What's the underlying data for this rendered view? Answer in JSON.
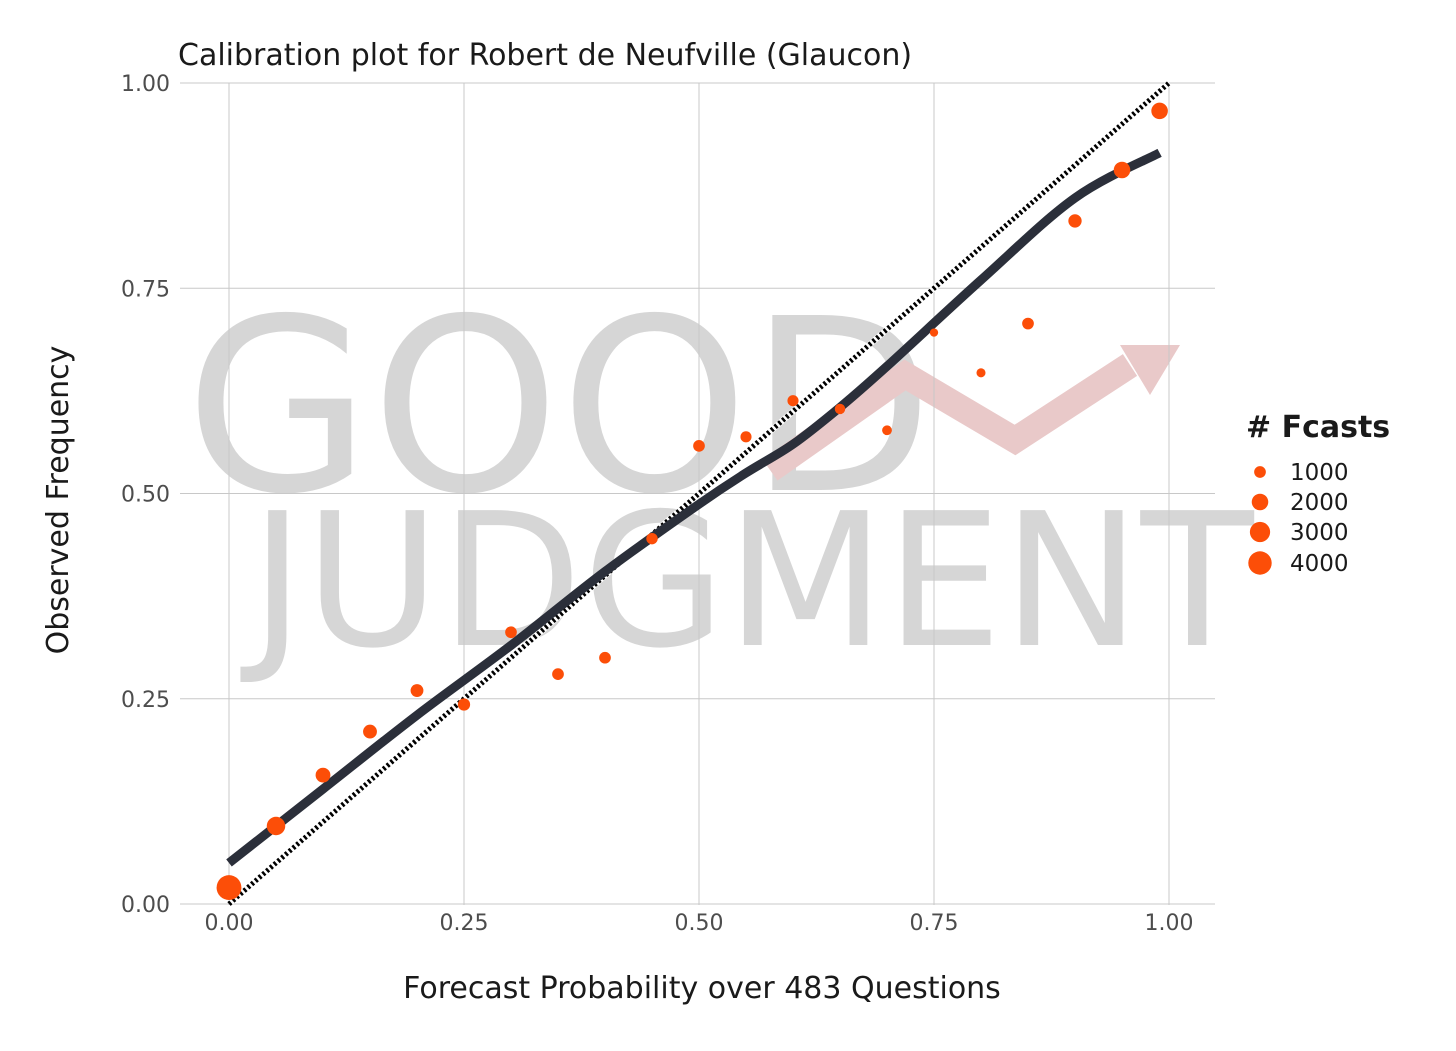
{
  "chart_data": {
    "type": "scatter",
    "title": "Calibration plot for Robert de Neufville (Glaucon)",
    "xlabel": "Forecast Probability over 483 Questions",
    "ylabel": "Observed Frequency",
    "xlim": [
      0,
      1
    ],
    "ylim": [
      0,
      1
    ],
    "x_ticks": [
      "0.00",
      "0.25",
      "0.50",
      "0.75",
      "1.00"
    ],
    "y_ticks": [
      "0.00",
      "0.25",
      "0.50",
      "0.75",
      "1.00"
    ],
    "grid": true,
    "colors": {
      "points": "#fc4e08",
      "fit_line": "#2b2f3a",
      "reference_line": "#000000",
      "grid": "#c8c8c8",
      "watermark_arrow": "#e9c9c9"
    },
    "points": [
      {
        "x": 0.0,
        "y": 0.02,
        "n": 4500
      },
      {
        "x": 0.05,
        "y": 0.095,
        "n": 2500
      },
      {
        "x": 0.1,
        "y": 0.157,
        "n": 1600
      },
      {
        "x": 0.15,
        "y": 0.21,
        "n": 1400
      },
      {
        "x": 0.2,
        "y": 0.26,
        "n": 1200
      },
      {
        "x": 0.25,
        "y": 0.243,
        "n": 1100
      },
      {
        "x": 0.3,
        "y": 0.331,
        "n": 1000
      },
      {
        "x": 0.35,
        "y": 0.28,
        "n": 1000
      },
      {
        "x": 0.4,
        "y": 0.3,
        "n": 1000
      },
      {
        "x": 0.45,
        "y": 0.445,
        "n": 950
      },
      {
        "x": 0.5,
        "y": 0.558,
        "n": 1000
      },
      {
        "x": 0.55,
        "y": 0.569,
        "n": 900
      },
      {
        "x": 0.6,
        "y": 0.613,
        "n": 900
      },
      {
        "x": 0.65,
        "y": 0.603,
        "n": 800
      },
      {
        "x": 0.7,
        "y": 0.577,
        "n": 700
      },
      {
        "x": 0.75,
        "y": 0.696,
        "n": 500
      },
      {
        "x": 0.8,
        "y": 0.647,
        "n": 600
      },
      {
        "x": 0.85,
        "y": 0.707,
        "n": 1000
      },
      {
        "x": 0.9,
        "y": 0.832,
        "n": 1300
      },
      {
        "x": 0.95,
        "y": 0.894,
        "n": 2000
      },
      {
        "x": 0.99,
        "y": 0.966,
        "n": 2000
      }
    ],
    "fit_line": [
      {
        "x": 0.0,
        "y": 0.05
      },
      {
        "x": 0.1,
        "y": 0.14
      },
      {
        "x": 0.2,
        "y": 0.23
      },
      {
        "x": 0.3,
        "y": 0.315
      },
      {
        "x": 0.4,
        "y": 0.405
      },
      {
        "x": 0.5,
        "y": 0.487
      },
      {
        "x": 0.55,
        "y": 0.525
      },
      {
        "x": 0.6,
        "y": 0.56
      },
      {
        "x": 0.65,
        "y": 0.605
      },
      {
        "x": 0.7,
        "y": 0.655
      },
      {
        "x": 0.8,
        "y": 0.76
      },
      {
        "x": 0.9,
        "y": 0.86
      },
      {
        "x": 0.99,
        "y": 0.915
      }
    ],
    "reference_line": [
      {
        "x": 0.0,
        "y": 0.0
      },
      {
        "x": 1.0,
        "y": 1.0
      }
    ],
    "legend": {
      "title": "# Fcasts",
      "placement": "right",
      "entries": [
        {
          "label": "1000",
          "n": 1000
        },
        {
          "label": "2000",
          "n": 2000
        },
        {
          "label": "3000",
          "n": 3000
        },
        {
          "label": "4000",
          "n": 4000
        }
      ]
    },
    "watermark": {
      "line1": "GOOD",
      "line2": "JUDGMENT"
    }
  }
}
